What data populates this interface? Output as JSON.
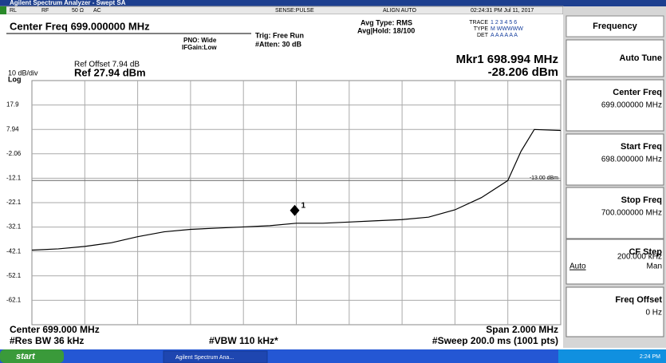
{
  "title_bar": "Agilent Spectrum Analyzer - Swept SA",
  "status": [
    "RL",
    "RF",
    "50 Ω",
    "AC",
    "SENSE:PULSE",
    "ALIGN AUTO",
    "02:24:31 PM Jul 11, 2017"
  ],
  "header": {
    "center_freq": "Center Freq 699.000000 MHz",
    "pno": "PNO: Wide",
    "ifgain": "IFGain:Low",
    "trig": "Trig: Free Run",
    "atten": "#Atten: 30 dB",
    "avg_type": "Avg Type: RMS",
    "avg_hold": "Avg|Hold: 18/100",
    "trace_label": "TRACE",
    "trace_nums": "1 2 3 4 5 6",
    "type_label": "TYPE",
    "type_val": "M WWWWW",
    "det_label": "DET",
    "det_val": "A A A A A A",
    "ref_offset": "Ref Offset 7.94 dB",
    "scale": "10 dB/div",
    "log": "Log",
    "ref_level": "Ref 27.94 dBm",
    "marker_freq": "Mkr1 698.994 MHz",
    "marker_level": "-28.206 dBm"
  },
  "plot": {
    "xlim": [
      698,
      700
    ],
    "ylim": [
      -72.06,
      27.94
    ],
    "xticks": [
      698.2,
      698.4,
      698.6,
      698.8,
      699,
      699.2,
      699.4,
      699.6,
      699.8
    ],
    "yticks": [
      {
        "value": 17.94,
        "label": "17.9"
      },
      7.94,
      -2.06,
      {
        "value": -12.06,
        "label": "-12.1"
      },
      {
        "value": -22.06,
        "label": "-22.1"
      },
      {
        "value": -32.06,
        "label": "-32.1"
      },
      {
        "value": -42.06,
        "label": "-42.1"
      },
      {
        "value": -52.06,
        "label": "-52.1"
      },
      {
        "value": -62.06,
        "label": "-62.1"
      }
    ],
    "x": [
      698,
      698.1,
      698.2,
      698.3,
      698.4,
      698.5,
      698.6,
      698.7,
      698.8,
      698.9,
      699,
      699.1,
      699.2,
      699.3,
      699.4,
      699.5,
      699.6,
      699.7,
      699.8,
      699.85,
      699.9,
      700
    ],
    "values": [
      -41.5,
      -41,
      -40,
      -38.5,
      -36,
      -34,
      -33,
      -32.5,
      -32,
      -31.5,
      -30.5,
      -30.5,
      -30,
      -29.5,
      -29,
      -28,
      -25,
      -20,
      -13,
      -1,
      7.9,
      7.5
    ],
    "marker": {
      "label": "1",
      "x": 698.994,
      "value": -28.206
    },
    "display_line": {
      "value": -13,
      "label": "-13.00 dBm"
    }
  },
  "footer": {
    "center": "Center 699.000 MHz",
    "span": "Span 2.000 MHz",
    "rbw": "#Res BW 36 kHz",
    "vbw": "#VBW 110 kHz*",
    "sweep": "#Sweep  200.0 ms (1001 pts)"
  },
  "softkeys": {
    "title": "Frequency",
    "keys": [
      {
        "label": "Auto Tune"
      },
      {
        "label": "Center Freq",
        "value": "699.000000 MHz"
      },
      {
        "label": "Start Freq",
        "value": "698.000000 MHz"
      },
      {
        "label": "Stop Freq",
        "value": "700.000000 MHz"
      },
      {
        "label": "CF Step",
        "value": "200.000 kHz",
        "left": "Auto",
        "right": "Man"
      },
      {
        "label": "Freq Offset",
        "value": "0 Hz"
      }
    ]
  },
  "taskbar": {
    "start": "start",
    "window": "Agilent Spectrum Ana...",
    "clock": "2:24 PM"
  }
}
